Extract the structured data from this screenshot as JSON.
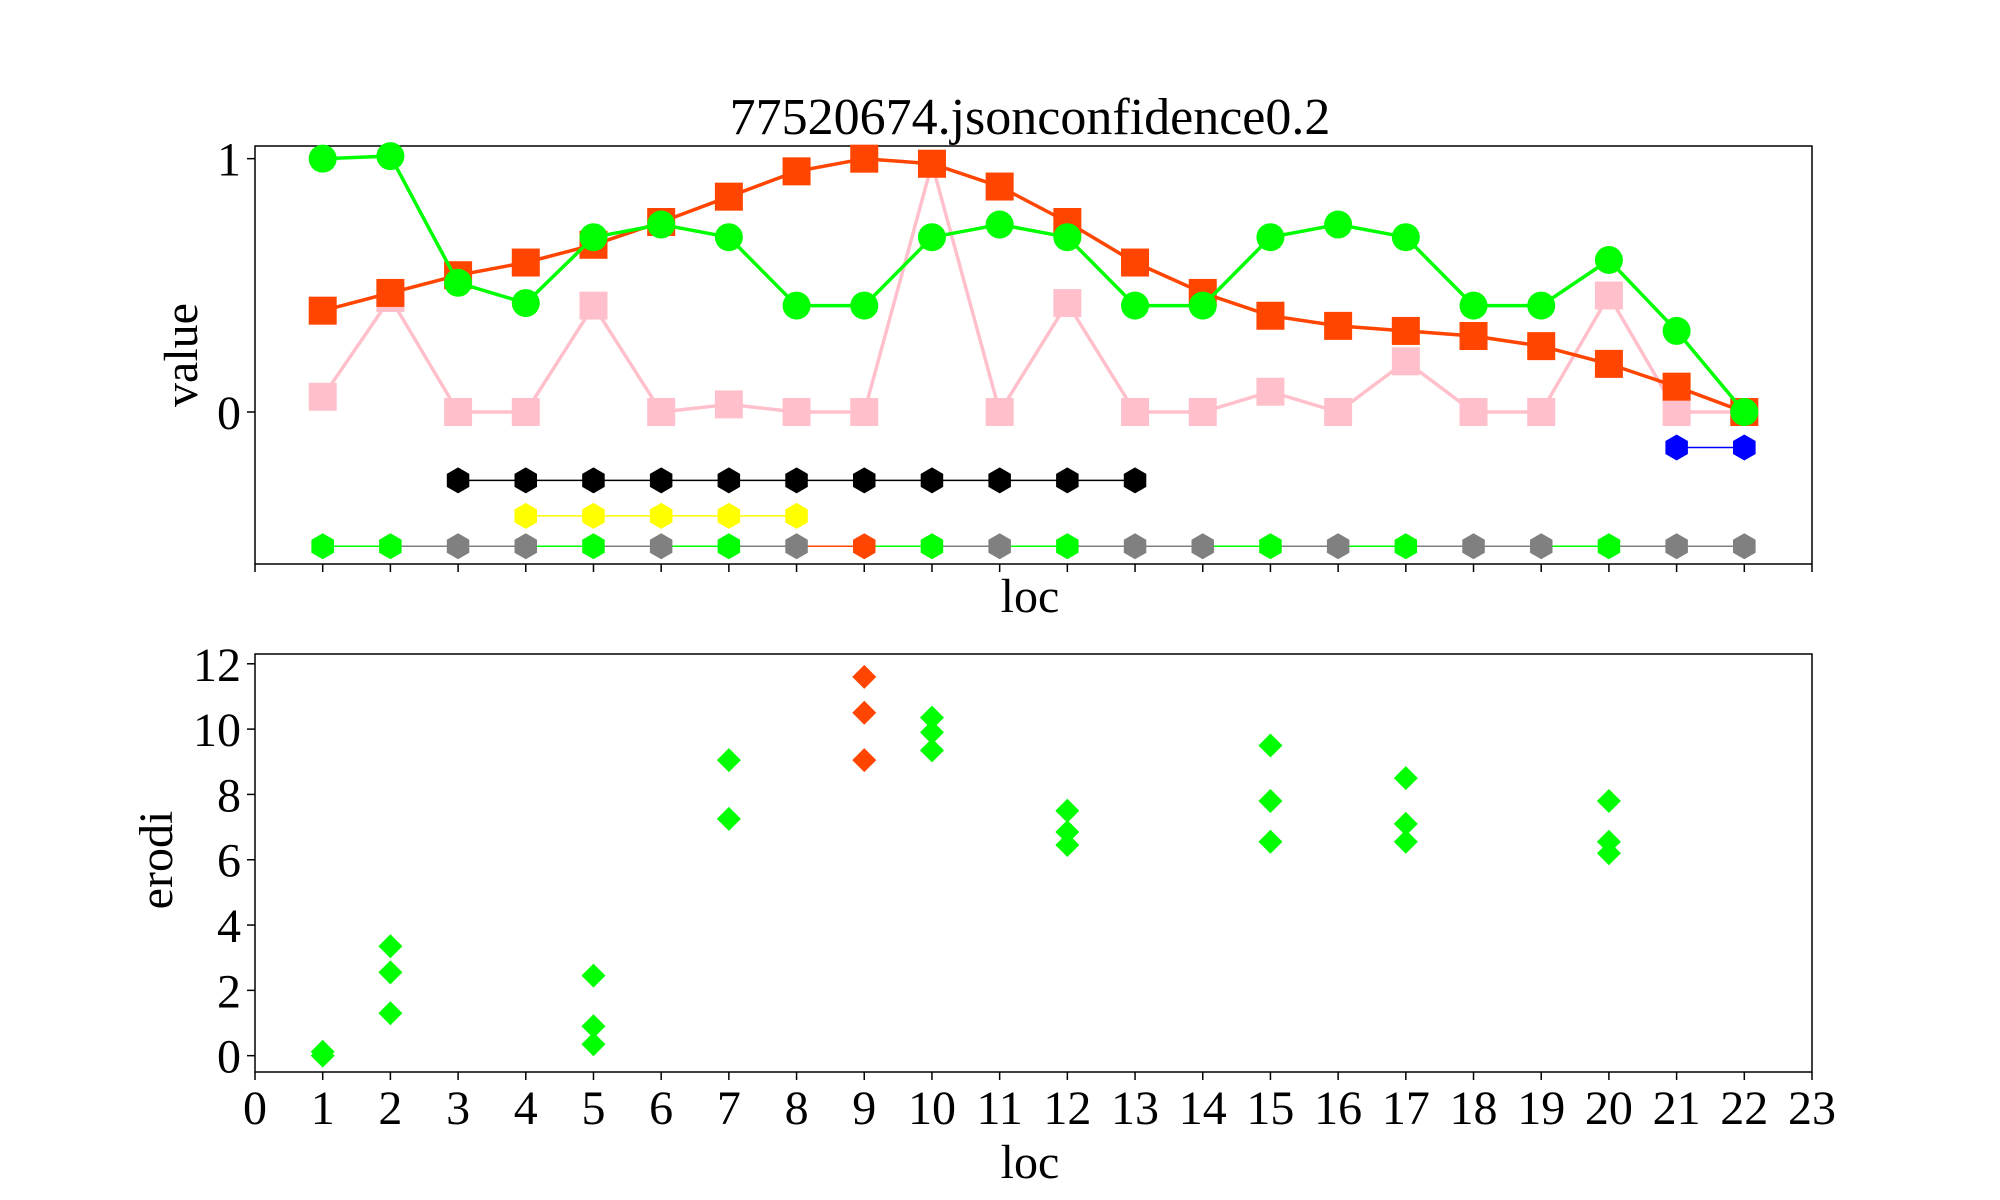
{
  "figure": {
    "title": "77520674.jsonconfidence0.2"
  },
  "colors": {
    "green": "#00ff00",
    "orange": "#ff4500",
    "pink": "#ffc0cb",
    "black": "#000000",
    "yellow": "#ffff00",
    "gray": "#808080",
    "blue": "#0000ff"
  },
  "chart_data": [
    {
      "type": "line",
      "title": "77520674.jsonconfidence0.2",
      "xlabel": "loc",
      "ylabel": "value",
      "xlim": [
        0,
        23
      ],
      "ylim": [
        -0.6,
        1.05
      ],
      "yticks": [
        0,
        1
      ],
      "series": [
        {
          "color": "pink",
          "marker": "square",
          "x": [
            1,
            2,
            3,
            4,
            5,
            6,
            7,
            8,
            9,
            10,
            11,
            12,
            13,
            14,
            15,
            16,
            17,
            18,
            19,
            20,
            21,
            22
          ],
          "y": [
            0.06,
            0.45,
            0.0,
            0.0,
            0.42,
            0.0,
            0.03,
            0.0,
            0.0,
            0.98,
            0.0,
            0.43,
            0.0,
            0.0,
            0.08,
            0.0,
            0.2,
            0.0,
            0.0,
            0.46,
            0.0,
            0.0
          ]
        },
        {
          "color": "orange",
          "marker": "square",
          "x": [
            1,
            2,
            3,
            4,
            5,
            6,
            7,
            8,
            9,
            10,
            11,
            12,
            13,
            14,
            15,
            16,
            17,
            18,
            19,
            20,
            21,
            22
          ],
          "y": [
            0.4,
            0.47,
            0.54,
            0.59,
            0.66,
            0.75,
            0.85,
            0.95,
            1.0,
            0.98,
            0.89,
            0.75,
            0.59,
            0.47,
            0.38,
            0.34,
            0.32,
            0.3,
            0.26,
            0.19,
            0.1,
            0.0
          ]
        },
        {
          "color": "green",
          "marker": "circle",
          "x": [
            1,
            2,
            3,
            4,
            5,
            6,
            7,
            8,
            9,
            10,
            11,
            12,
            13,
            14,
            15,
            16,
            17,
            18,
            19,
            20,
            21,
            22
          ],
          "y": [
            1.0,
            1.01,
            0.51,
            0.43,
            0.69,
            0.74,
            0.69,
            0.42,
            0.42,
            0.69,
            0.74,
            0.69,
            0.42,
            0.42,
            0.69,
            0.74,
            0.69,
            0.42,
            0.42,
            0.6,
            0.32,
            0.0
          ]
        },
        {
          "color": "black",
          "marker": "hexagon",
          "x": [
            3,
            4,
            5,
            6,
            7,
            8,
            9,
            10,
            11,
            12,
            13
          ],
          "y": [
            -0.27,
            -0.27,
            -0.27,
            -0.27,
            -0.27,
            -0.27,
            -0.27,
            -0.27,
            -0.27,
            -0.27,
            -0.27
          ]
        },
        {
          "color": "yellow",
          "marker": "hexagon",
          "x": [
            4,
            5,
            6,
            7,
            8
          ],
          "y": [
            -0.41,
            -0.41,
            -0.41,
            -0.41,
            -0.41
          ]
        },
        {
          "color": "blue",
          "marker": "hexagon",
          "x": [
            21,
            22
          ],
          "y": [
            -0.14,
            -0.14
          ]
        },
        {
          "color": "line",
          "marker": "hexagon",
          "x": [
            1,
            2,
            3,
            4,
            5,
            6,
            7,
            8,
            9,
            10,
            11,
            12,
            13,
            14,
            15,
            16,
            17,
            18,
            19,
            20,
            21,
            22
          ],
          "y": [
            -0.53,
            -0.53,
            -0.53,
            -0.53,
            -0.53,
            -0.53,
            -0.53,
            -0.53,
            -0.53,
            -0.53,
            -0.53,
            -0.53,
            -0.53,
            -0.53,
            -0.53,
            -0.53,
            -0.53,
            -0.53,
            -0.53,
            -0.53,
            -0.53,
            -0.53
          ],
          "point_colors": [
            "green",
            "green",
            "gray",
            "gray",
            "green",
            "gray",
            "green",
            "gray",
            "orange",
            "green",
            "gray",
            "green",
            "gray",
            "gray",
            "green",
            "gray",
            "green",
            "gray",
            "gray",
            "green",
            "gray",
            "gray"
          ]
        }
      ]
    },
    {
      "type": "scatter",
      "xlabel": "loc",
      "ylabel": "erodi",
      "xlim": [
        0,
        23
      ],
      "ylim": [
        -0.5,
        12.3
      ],
      "xticks": [
        0,
        1,
        2,
        3,
        4,
        5,
        6,
        7,
        8,
        9,
        10,
        11,
        12,
        13,
        14,
        15,
        16,
        17,
        18,
        19,
        20,
        21,
        22,
        23
      ],
      "yticks": [
        0,
        2,
        4,
        6,
        8,
        10,
        12
      ],
      "points": [
        {
          "x": 1,
          "y": 0.0,
          "color": "green"
        },
        {
          "x": 1,
          "y": 0.12,
          "color": "green"
        },
        {
          "x": 2,
          "y": 1.3,
          "color": "green"
        },
        {
          "x": 2,
          "y": 2.55,
          "color": "green"
        },
        {
          "x": 2,
          "y": 3.35,
          "color": "green"
        },
        {
          "x": 5,
          "y": 0.35,
          "color": "green"
        },
        {
          "x": 5,
          "y": 0.9,
          "color": "green"
        },
        {
          "x": 5,
          "y": 2.45,
          "color": "green"
        },
        {
          "x": 7,
          "y": 7.25,
          "color": "green"
        },
        {
          "x": 7,
          "y": 9.05,
          "color": "green"
        },
        {
          "x": 9,
          "y": 9.05,
          "color": "orange"
        },
        {
          "x": 9,
          "y": 10.5,
          "color": "orange"
        },
        {
          "x": 9,
          "y": 11.6,
          "color": "orange"
        },
        {
          "x": 10,
          "y": 9.35,
          "color": "green"
        },
        {
          "x": 10,
          "y": 9.9,
          "color": "green"
        },
        {
          "x": 10,
          "y": 10.35,
          "color": "green"
        },
        {
          "x": 12,
          "y": 6.45,
          "color": "green"
        },
        {
          "x": 12,
          "y": 6.85,
          "color": "green"
        },
        {
          "x": 12,
          "y": 7.5,
          "color": "green"
        },
        {
          "x": 15,
          "y": 6.55,
          "color": "green"
        },
        {
          "x": 15,
          "y": 7.8,
          "color": "green"
        },
        {
          "x": 15,
          "y": 9.5,
          "color": "green"
        },
        {
          "x": 17,
          "y": 6.55,
          "color": "green"
        },
        {
          "x": 17,
          "y": 7.1,
          "color": "green"
        },
        {
          "x": 17,
          "y": 8.5,
          "color": "green"
        },
        {
          "x": 20,
          "y": 6.2,
          "color": "green"
        },
        {
          "x": 20,
          "y": 6.55,
          "color": "green"
        },
        {
          "x": 20,
          "y": 7.8,
          "color": "green"
        }
      ]
    }
  ]
}
